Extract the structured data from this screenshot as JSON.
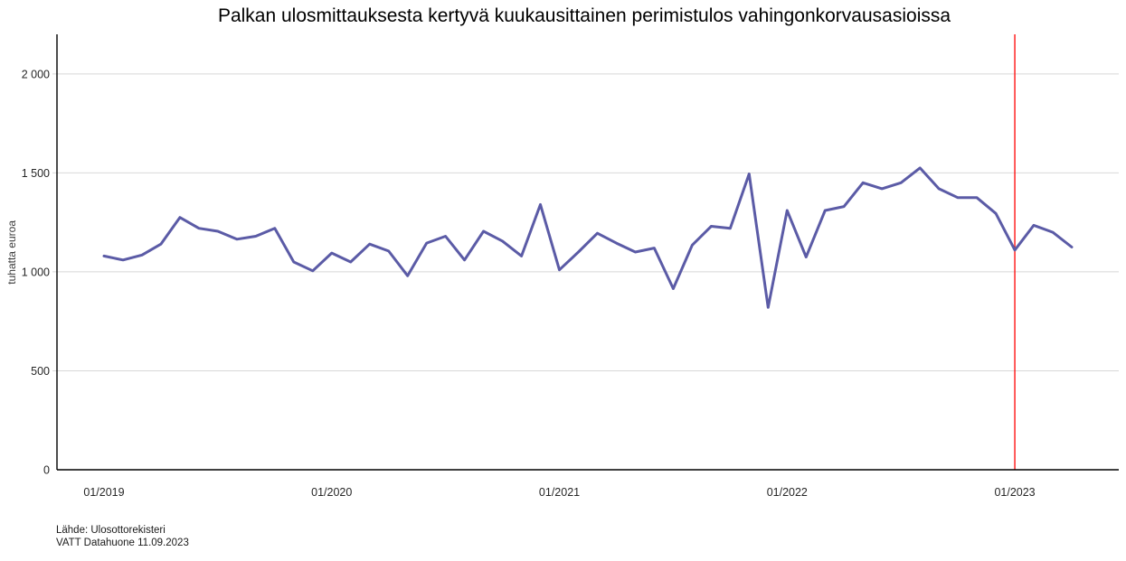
{
  "page": {
    "title": "Palkan ulosmittauksesta kertyvä kuukausittainen perimistulos vahingonkorvausasioissa",
    "source_line1": "Lähde: Ulosottorekisteri",
    "source_line2": "VATT Datahuone 11.09.2023"
  },
  "chart_data": {
    "type": "line",
    "title": "Palkan ulosmittauksesta kertyvä kuukausittainen perimistulos vahingonkorvausasioissa",
    "xlabel": "",
    "ylabel": "tuhatta euroa",
    "ylim": [
      0,
      2200
    ],
    "grid": "horizontal-gridlines",
    "legend_position": "none",
    "line_color": "#5B5BA6",
    "axis_color": "#000000",
    "gridline_color": "#D8D8D8",
    "tick_text_color": "#262626",
    "vline": {
      "at": "01/2023",
      "index": 48,
      "color": "#FF0000"
    },
    "y_ticks": [
      {
        "value": 0,
        "label": "0"
      },
      {
        "value": 500,
        "label": "500"
      },
      {
        "value": 1000,
        "label": "1 000"
      },
      {
        "value": 1500,
        "label": "1 500"
      },
      {
        "value": 2000,
        "label": "2 000"
      }
    ],
    "x_ticks": [
      {
        "index": 0,
        "label": "01/2019"
      },
      {
        "index": 12,
        "label": "01/2020"
      },
      {
        "index": 24,
        "label": "01/2021"
      },
      {
        "index": 36,
        "label": "01/2022"
      },
      {
        "index": 48,
        "label": "01/2023"
      }
    ],
    "x": [
      "01/2019",
      "02/2019",
      "03/2019",
      "04/2019",
      "05/2019",
      "06/2019",
      "07/2019",
      "08/2019",
      "09/2019",
      "10/2019",
      "11/2019",
      "12/2019",
      "01/2020",
      "02/2020",
      "03/2020",
      "04/2020",
      "05/2020",
      "06/2020",
      "07/2020",
      "08/2020",
      "09/2020",
      "10/2020",
      "11/2020",
      "12/2020",
      "01/2021",
      "02/2021",
      "03/2021",
      "04/2021",
      "05/2021",
      "06/2021",
      "07/2021",
      "08/2021",
      "09/2021",
      "10/2021",
      "11/2021",
      "12/2021",
      "01/2022",
      "02/2022",
      "03/2022",
      "04/2022",
      "05/2022",
      "06/2022",
      "07/2022",
      "08/2022",
      "09/2022",
      "10/2022",
      "11/2022",
      "12/2022",
      "01/2023",
      "02/2023",
      "03/2023",
      "04/2023"
    ],
    "values": [
      1080,
      1060,
      1085,
      1140,
      1275,
      1220,
      1205,
      1165,
      1180,
      1220,
      1050,
      1005,
      1095,
      1050,
      1140,
      1105,
      980,
      1145,
      1180,
      1060,
      1205,
      1155,
      1080,
      1340,
      1010,
      1100,
      1195,
      1145,
      1100,
      1120,
      915,
      1135,
      1230,
      1220,
      1495,
      820,
      1310,
      1075,
      1310,
      1330,
      1450,
      1420,
      1450,
      1525,
      1420,
      1375,
      1375,
      1295,
      1110,
      1235,
      1200,
      1125
    ]
  }
}
